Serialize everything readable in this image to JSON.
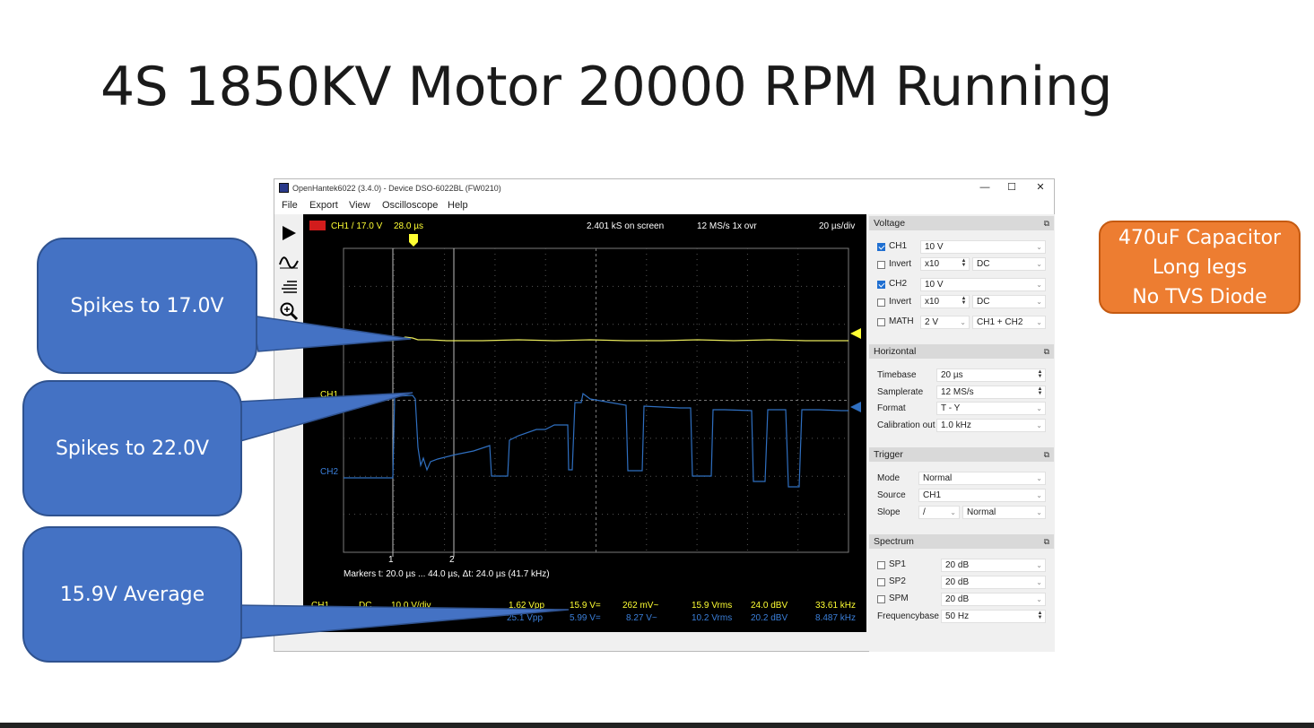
{
  "slide": {
    "title": "4S 1850KV Motor 20000 RPM Running",
    "note": [
      "470uF Capacitor",
      "Long legs",
      "No TVS Diode"
    ],
    "callouts": [
      {
        "text": "Spikes to 17.0V"
      },
      {
        "text": "Spikes to 22.0V"
      },
      {
        "text": "15.9V Average"
      }
    ],
    "colors": {
      "callout": "#4472c4",
      "note": "#ed7d31",
      "ch1": "#ffff33",
      "ch2": "#3b7fd9"
    }
  },
  "window": {
    "title": "OpenHantek6022 (3.4.0) - Device DSO-6022BL (FW0210)",
    "controls": {
      "minimize": "—",
      "maximize": "☐",
      "close": "✕"
    },
    "menu": [
      "File",
      "Export",
      "View",
      "Oscilloscope",
      "Help"
    ],
    "toolbar_icons": [
      "play-icon",
      "sine-wave-icon",
      "trigger-level-icon",
      "zoom-icon"
    ]
  },
  "scope": {
    "header": {
      "channel_info": "CH1  /  17.0 V",
      "trigger_pos": "28.0 µs",
      "samples": "2.401 kS on screen",
      "rate": "12 MS/s 1x ovr",
      "timebase": "20 µs/div"
    },
    "ch1_label": "CH1",
    "ch2_label": "CH2",
    "markers_line": "Markers   t: 20.0 µs ... 44.0 µs,  Δt: 24.0 µs (41.7 kHz)",
    "marker1": "1",
    "marker2": "2",
    "measurements": {
      "ch1": {
        "name": "CH1",
        "coupling": "DC",
        "vdiv": "10.0 V/div",
        "vpp": "1.62 Vpp",
        "vdc": "15.9 V=",
        "vac": "262 mV~",
        "vrms": "15.9 Vrms",
        "dbv": "24.0 dBV",
        "freq": "33.61 kHz"
      },
      "ch2": {
        "vpp": "25.1 Vpp",
        "vdc": "5.99 V=",
        "vac": "8.27 V~",
        "vrms": "10.2 Vrms",
        "dbv": "20.2 dBV",
        "freq": "8.487 kHz"
      }
    }
  },
  "panel": {
    "voltage": {
      "title": "Voltage",
      "ch1": {
        "label": "CH1",
        "checked": true,
        "value": "10 V"
      },
      "ch1_invert": {
        "label": "Invert",
        "checked": false,
        "probe": "x10",
        "coupling": "DC"
      },
      "ch2": {
        "label": "CH2",
        "checked": true,
        "value": "10 V"
      },
      "ch2_invert": {
        "label": "Invert",
        "checked": false,
        "probe": "x10",
        "coupling": "DC"
      },
      "math": {
        "label": "MATH",
        "checked": false,
        "value": "2 V",
        "mode": "CH1 + CH2"
      }
    },
    "horizontal": {
      "title": "Horizontal",
      "timebase_label": "Timebase",
      "timebase": "20 µs",
      "samplerate_label": "Samplerate",
      "samplerate": "12 MS/s",
      "format_label": "Format",
      "format": "T - Y",
      "calibration_label": "Calibration out",
      "calibration": "1.0 kHz"
    },
    "trigger": {
      "title": "Trigger",
      "mode_label": "Mode",
      "mode": "Normal",
      "source_label": "Source",
      "source": "CH1",
      "slope_label": "Slope",
      "slope": "/",
      "slope_mode": "Normal"
    },
    "spectrum": {
      "title": "Spectrum",
      "sp1_label": "SP1",
      "sp1": "20 dB",
      "sp2_label": "SP2",
      "sp2": "20 dB",
      "spm_label": "SPM",
      "spm": "20 dB",
      "freqbase_label": "Frequencybase",
      "freqbase": "50 Hz"
    }
  }
}
